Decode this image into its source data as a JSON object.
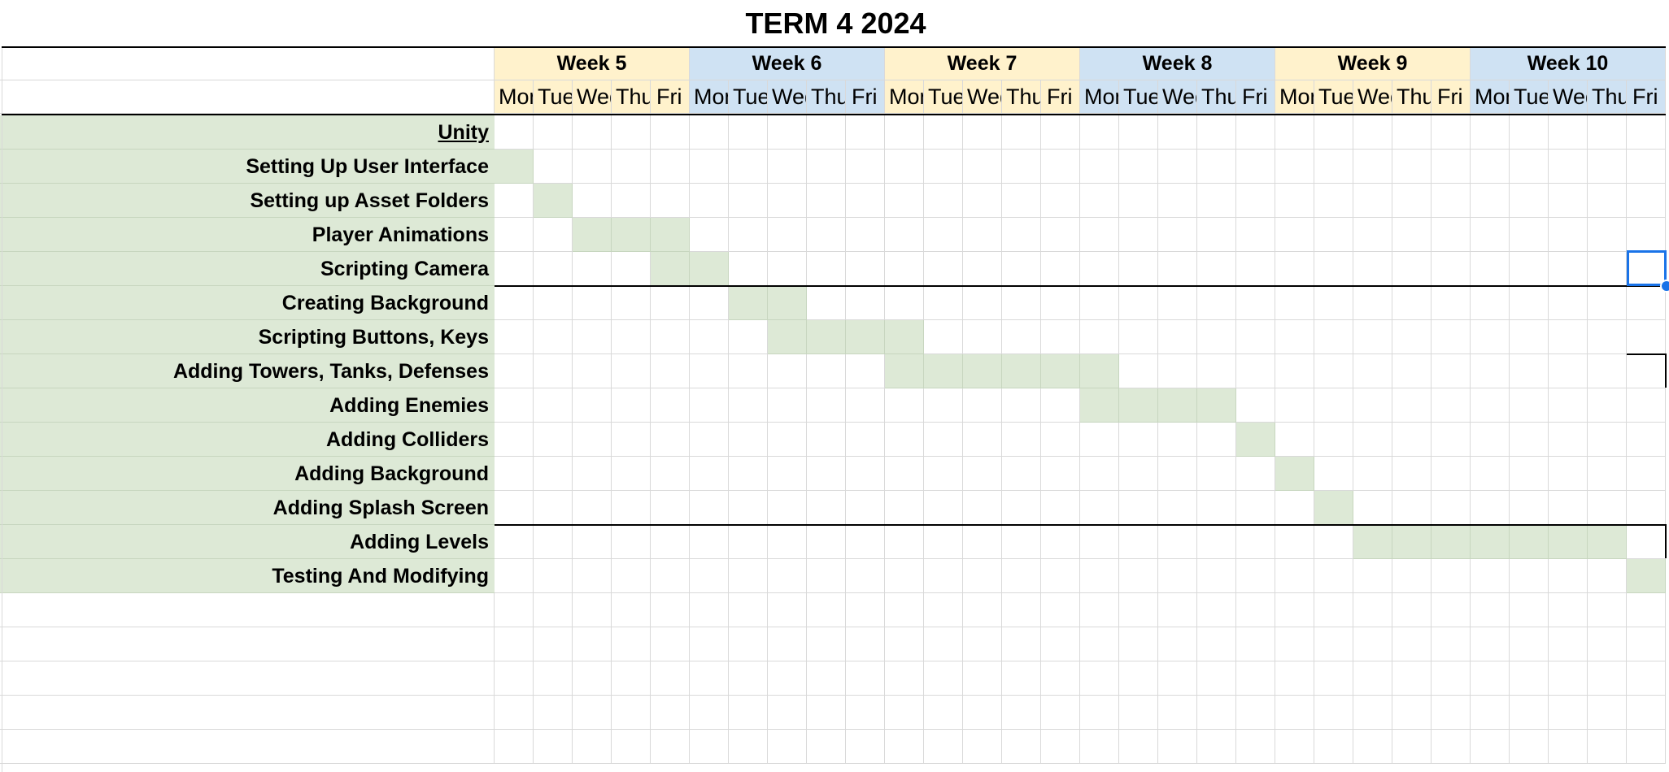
{
  "title": "TERM 4 2024",
  "colors": {
    "task_fill": "#dde9d6",
    "week_odd": "#fff2cc",
    "week_even": "#cfe2f3",
    "selection": "#1a73e8"
  },
  "weeks": [
    {
      "label": "Week 5",
      "days": [
        "Mon",
        "Tue",
        "Wed",
        "Thu",
        "Fri"
      ]
    },
    {
      "label": "Week 6",
      "days": [
        "Mon",
        "Tue",
        "Wed",
        "Thu",
        "Fri"
      ]
    },
    {
      "label": "Week 7",
      "days": [
        "Mon",
        "Tue",
        "Wed",
        "Thu",
        "Fri"
      ]
    },
    {
      "label": "Week 8",
      "days": [
        "Mon",
        "Tue",
        "Wed",
        "Thu",
        "Fri"
      ]
    },
    {
      "label": "Week 9",
      "days": [
        "Mon",
        "Tue",
        "Wed",
        "Thu",
        "Fri"
      ]
    },
    {
      "label": "Week 10",
      "days": [
        "Mon",
        "Tue",
        "Wed",
        "Thu",
        "Fri"
      ]
    }
  ],
  "tasks": [
    {
      "label": "Unity",
      "section_header": true,
      "start_day": null,
      "end_day": null
    },
    {
      "label": "Setting Up User Interface",
      "start_day": 1,
      "end_day": 1
    },
    {
      "label": "Setting up Asset Folders",
      "start_day": 2,
      "end_day": 2
    },
    {
      "label": "Player Animations",
      "start_day": 3,
      "end_day": 5
    },
    {
      "label": "Scripting Camera",
      "start_day": 5,
      "end_day": 6
    },
    {
      "label": "Creating Background",
      "start_day": 7,
      "end_day": 8
    },
    {
      "label": "Scripting Buttons, Keys",
      "start_day": 8,
      "end_day": 11
    },
    {
      "label": "Adding Towers, Tanks, Defenses",
      "start_day": 11,
      "end_day": 16
    },
    {
      "label": "Adding Enemies",
      "start_day": 16,
      "end_day": 19
    },
    {
      "label": "Adding Colliders",
      "start_day": 20,
      "end_day": 20
    },
    {
      "label": "Adding Background",
      "start_day": 21,
      "end_day": 21
    },
    {
      "label": "Adding Splash Screen",
      "start_day": 22,
      "end_day": 22
    },
    {
      "label": "Adding Levels",
      "start_day": 23,
      "end_day": 29
    },
    {
      "label": "Testing And Modifying",
      "start_day": 30,
      "end_day": 30
    }
  ],
  "empty_rows_after": 5
}
